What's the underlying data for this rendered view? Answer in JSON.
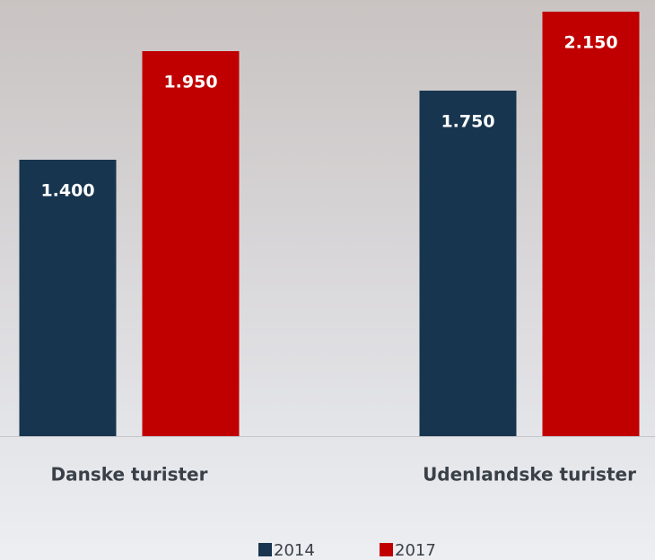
{
  "chart_data": {
    "type": "bar",
    "categories": [
      "Danske turister",
      "Udenlandske turister"
    ],
    "series": [
      {
        "name": "2014",
        "color": "#17354f",
        "values": [
          1400,
          1750
        ],
        "value_labels": [
          "1.400",
          "1.750"
        ]
      },
      {
        "name": "2017",
        "color": "#c00000",
        "values": [
          1950,
          2150
        ],
        "value_labels": [
          "1.950",
          "2.150"
        ]
      }
    ],
    "ylim": [
      0,
      2200
    ]
  }
}
